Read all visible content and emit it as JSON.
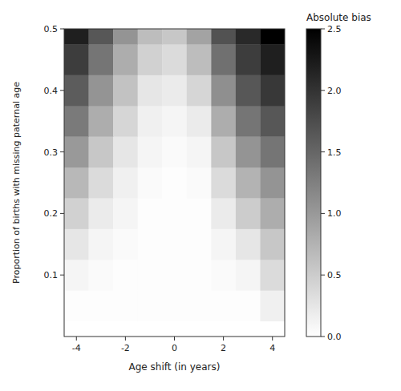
{
  "chart_data": {
    "type": "heatmap",
    "title": "Absolute bias",
    "x_label": "Age shift (in years)",
    "y_label": "Proportion of births with missing paternal age",
    "x": [
      -4,
      -3,
      -2,
      -1,
      0,
      1,
      2,
      3,
      4
    ],
    "y": [
      0.05,
      0.1,
      0.15,
      0.2,
      0.25,
      0.3,
      0.35,
      0.4,
      0.45,
      0.5
    ],
    "xlim": [
      -4.5,
      4.5
    ],
    "xticks": [
      -4,
      -2,
      0,
      2,
      4
    ],
    "ylim": [
      0.0,
      0.5
    ],
    "yticks": [
      0.1,
      0.2,
      0.3,
      0.4,
      0.5
    ],
    "color_range": [
      0.0,
      2.5
    ],
    "color_ticks": [
      {
        "value": 0,
        "label": "0.0"
      },
      0.5,
      {
        "value": 1,
        "label": "1.0"
      },
      1.5,
      {
        "value": 2,
        "label": "2.0"
      },
      2.5
    ],
    "values": [
      [
        0.02,
        0.02,
        0.02,
        0.02,
        0.02,
        0.02,
        0.02,
        0.02,
        0.15
      ],
      [
        0.1,
        0.05,
        0.02,
        0.02,
        0.02,
        0.02,
        0.05,
        0.1,
        0.35
      ],
      [
        0.25,
        0.1,
        0.05,
        0.02,
        0.02,
        0.02,
        0.1,
        0.25,
        0.55
      ],
      [
        0.45,
        0.2,
        0.1,
        0.02,
        0.02,
        0.02,
        0.2,
        0.5,
        0.8
      ],
      [
        0.7,
        0.35,
        0.15,
        0.05,
        0.02,
        0.05,
        0.35,
        0.75,
        1.05
      ],
      [
        1.0,
        0.55,
        0.25,
        0.1,
        0.05,
        0.1,
        0.55,
        1.05,
        1.35
      ],
      [
        1.3,
        0.8,
        0.4,
        0.15,
        0.1,
        0.2,
        0.8,
        1.35,
        1.65
      ],
      [
        1.6,
        1.05,
        0.6,
        0.25,
        0.2,
        0.4,
        1.1,
        1.65,
        1.95
      ],
      [
        1.9,
        1.35,
        0.8,
        0.45,
        0.35,
        0.65,
        1.4,
        1.9,
        2.2
      ],
      [
        2.2,
        1.65,
        1.05,
        0.65,
        0.55,
        0.9,
        1.7,
        2.1,
        2.5
      ]
    ]
  }
}
